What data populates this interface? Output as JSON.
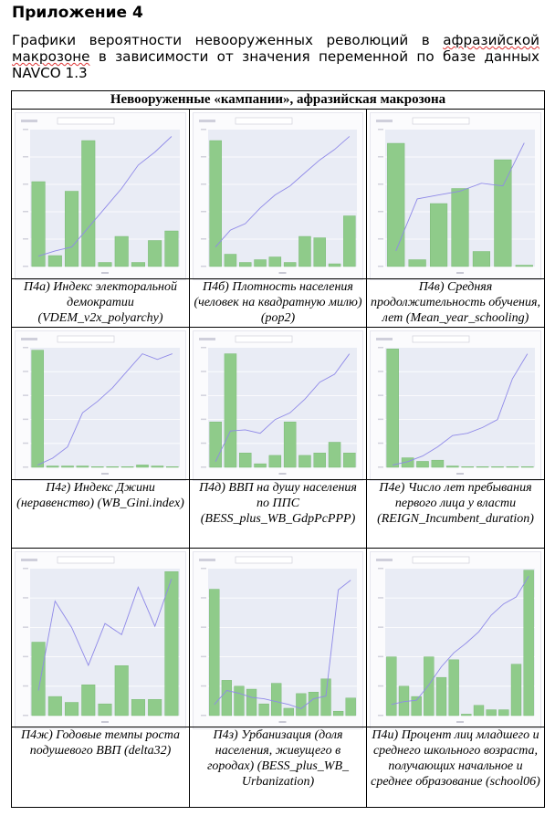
{
  "appendix_title": "Приложение 4",
  "intro_before": " Графики вероятности невооруженных революций в ",
  "intro_underlined": "афразийской макрозоне",
  "intro_after": " в зависимости от значения переменной по базе данных NAVCO 1.3",
  "table_header": "Невооруженные «кампании», афразийская макрозона",
  "colors": {
    "bar": "#8fcb8a",
    "bar_stroke": "#6fb36a",
    "line": "#8f89e8",
    "plot_bg": "#e9ecf5"
  },
  "panels": [
    {
      "caption": "П4а) Индекс электоральной демократии (VDEM_v2x_polyarchy)",
      "chart_data": {
        "type": "bar+line",
        "bars": [
          0.62,
          0.08,
          0.55,
          0.92,
          0.03,
          0.22,
          0.03,
          0.19,
          0.26
        ],
        "line": [
          0.08,
          0.12,
          0.15,
          0.3,
          0.45,
          0.6,
          0.78,
          0.88,
          1.0
        ]
      }
    },
    {
      "caption": "П4б) Плотность населения (человек на квадратную милю) (pop2)",
      "chart_data": {
        "type": "bar+line",
        "bars": [
          0.92,
          0.09,
          0.03,
          0.05,
          0.07,
          0.03,
          0.22,
          0.21,
          0.02,
          0.37
        ],
        "line": [
          0.15,
          0.28,
          0.33,
          0.45,
          0.55,
          0.62,
          0.72,
          0.82,
          0.9,
          1.0
        ]
      }
    },
    {
      "caption": "П4в) Средняя продолжительность обучения, лет (Mean_year_schooling)",
      "chart_data": {
        "type": "bar+line",
        "bars": [
          0.9,
          0.05,
          0.46,
          0.57,
          0.11,
          0.78,
          0.01
        ],
        "line": [
          0.12,
          0.52,
          0.55,
          0.58,
          0.64,
          0.62,
          0.95
        ]
      }
    },
    {
      "caption": "П4г) Индекс Джини (неравенство) (WB_Gini.index)",
      "chart_data": {
        "type": "bar+line",
        "bars": [
          0.98,
          0.01,
          0.01,
          0.01,
          0.0,
          0.0,
          0.0,
          0.02,
          0.01,
          0.0
        ],
        "line": [
          0.02,
          0.08,
          0.18,
          0.48,
          0.58,
          0.7,
          0.85,
          1.0,
          0.95,
          1.0
        ]
      }
    },
    {
      "caption": "П4д) ВВП на душу населения по ППС (BESS_plus_WB_GdpPcPPP)",
      "chart_data": {
        "type": "bar+line",
        "bars": [
          0.38,
          0.95,
          0.12,
          0.03,
          0.1,
          0.38,
          0.1,
          0.12,
          0.21,
          0.12
        ],
        "line": [
          0.05,
          0.32,
          0.33,
          0.3,
          0.42,
          0.48,
          0.6,
          0.75,
          0.82,
          1.0
        ]
      }
    },
    {
      "caption": "П4е) Число лет пребывания первого лица у власти (REIGN_Incumbent_duration)",
      "chart_data": {
        "type": "bar+line",
        "bars": [
          0.99,
          0.08,
          0.05,
          0.06,
          0.01,
          0.0,
          0.0,
          0.0,
          0.0,
          0.0
        ],
        "line": [
          0.02,
          0.05,
          0.1,
          0.18,
          0.28,
          0.3,
          0.35,
          0.42,
          0.78,
          1.0
        ]
      }
    },
    {
      "caption": "П4ж) Годовые темпы роста подушевого ВВП (delta32)",
      "chart_data": {
        "type": "bar+line",
        "bars": [
          0.5,
          0.13,
          0.09,
          0.21,
          0.08,
          0.34,
          0.11,
          0.11,
          0.98
        ],
        "line": [
          0.18,
          0.82,
          0.63,
          0.36,
          0.66,
          0.58,
          0.92,
          0.64,
          0.98
        ]
      }
    },
    {
      "caption": "П4з) Урбанизация (доля населения, живущего в городах) (BESS_plus_WB_ Urbanization)",
      "chart_data": {
        "type": "bar+line",
        "bars": [
          0.86,
          0.24,
          0.2,
          0.18,
          0.08,
          0.22,
          0.05,
          0.15,
          0.16,
          0.25,
          0.03,
          0.12
        ],
        "line": [
          0.08,
          0.18,
          0.16,
          0.13,
          0.12,
          0.1,
          0.08,
          0.05,
          0.12,
          0.14,
          0.9,
          0.97
        ]
      }
    },
    {
      "caption": "П4и) Процент лиц младшего и среднего школьного возраста, получающих начальное и среднее образование (school06)",
      "chart_data": {
        "type": "bar+line",
        "bars": [
          0.4,
          0.2,
          0.13,
          0.4,
          0.26,
          0.38,
          0.01,
          0.07,
          0.04,
          0.04,
          0.35,
          0.99
        ],
        "line": [
          0.08,
          0.1,
          0.11,
          0.22,
          0.35,
          0.45,
          0.52,
          0.6,
          0.72,
          0.8,
          0.85,
          1.0
        ]
      }
    }
  ]
}
